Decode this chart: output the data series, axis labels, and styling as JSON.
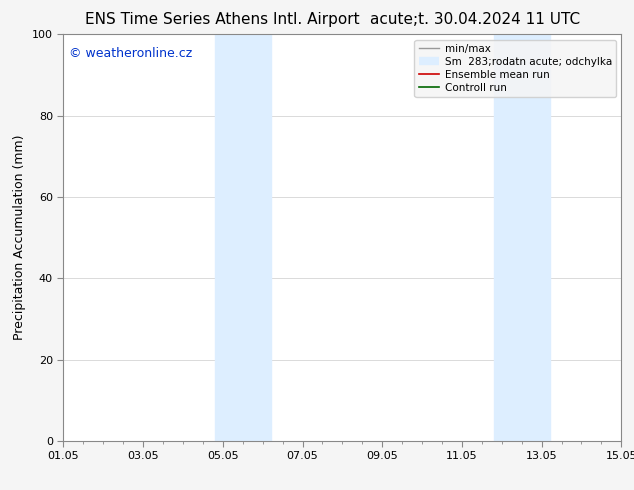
{
  "title_left": "ENS Time Series Athens Intl. Airport",
  "title_right": "acute;t. 30.04.2024 11 UTC",
  "ylabel": "Precipitation Accumulation (mm)",
  "ylim": [
    0,
    100
  ],
  "yticks": [
    0,
    20,
    40,
    60,
    80,
    100
  ],
  "xtick_labels": [
    "01.05",
    "03.05",
    "05.05",
    "07.05",
    "09.05",
    "11.05",
    "13.05",
    "15.05"
  ],
  "xtick_positions": [
    0,
    2,
    4,
    6,
    8,
    10,
    12,
    14
  ],
  "xlim": [
    0,
    14
  ],
  "shaded_regions": [
    {
      "xmin": 3.8,
      "xmax": 5.2,
      "color": "#ddeeff"
    },
    {
      "xmin": 10.8,
      "xmax": 12.2,
      "color": "#ddeeff"
    }
  ],
  "watermark_text": "© weatheronline.cz",
  "watermark_color": "#0033cc",
  "watermark_fontsize": 9,
  "legend_entries": [
    {
      "label": "min/max",
      "color": "#999999",
      "lw": 1.0,
      "type": "line"
    },
    {
      "label": "Sm  283;rodatn acute; odchylka",
      "color": "#ddeeff",
      "lw": 8,
      "type": "band"
    },
    {
      "label": "Ensemble mean run",
      "color": "#cc0000",
      "lw": 1.2,
      "type": "line"
    },
    {
      "label": "Controll run",
      "color": "#006600",
      "lw": 1.2,
      "type": "line"
    }
  ],
  "background_color": "#f5f5f5",
  "axes_bg_color": "#ffffff",
  "grid_color": "#cccccc",
  "title_fontsize": 11,
  "tick_fontsize": 8,
  "ylabel_fontsize": 9,
  "legend_fontsize": 7.5
}
